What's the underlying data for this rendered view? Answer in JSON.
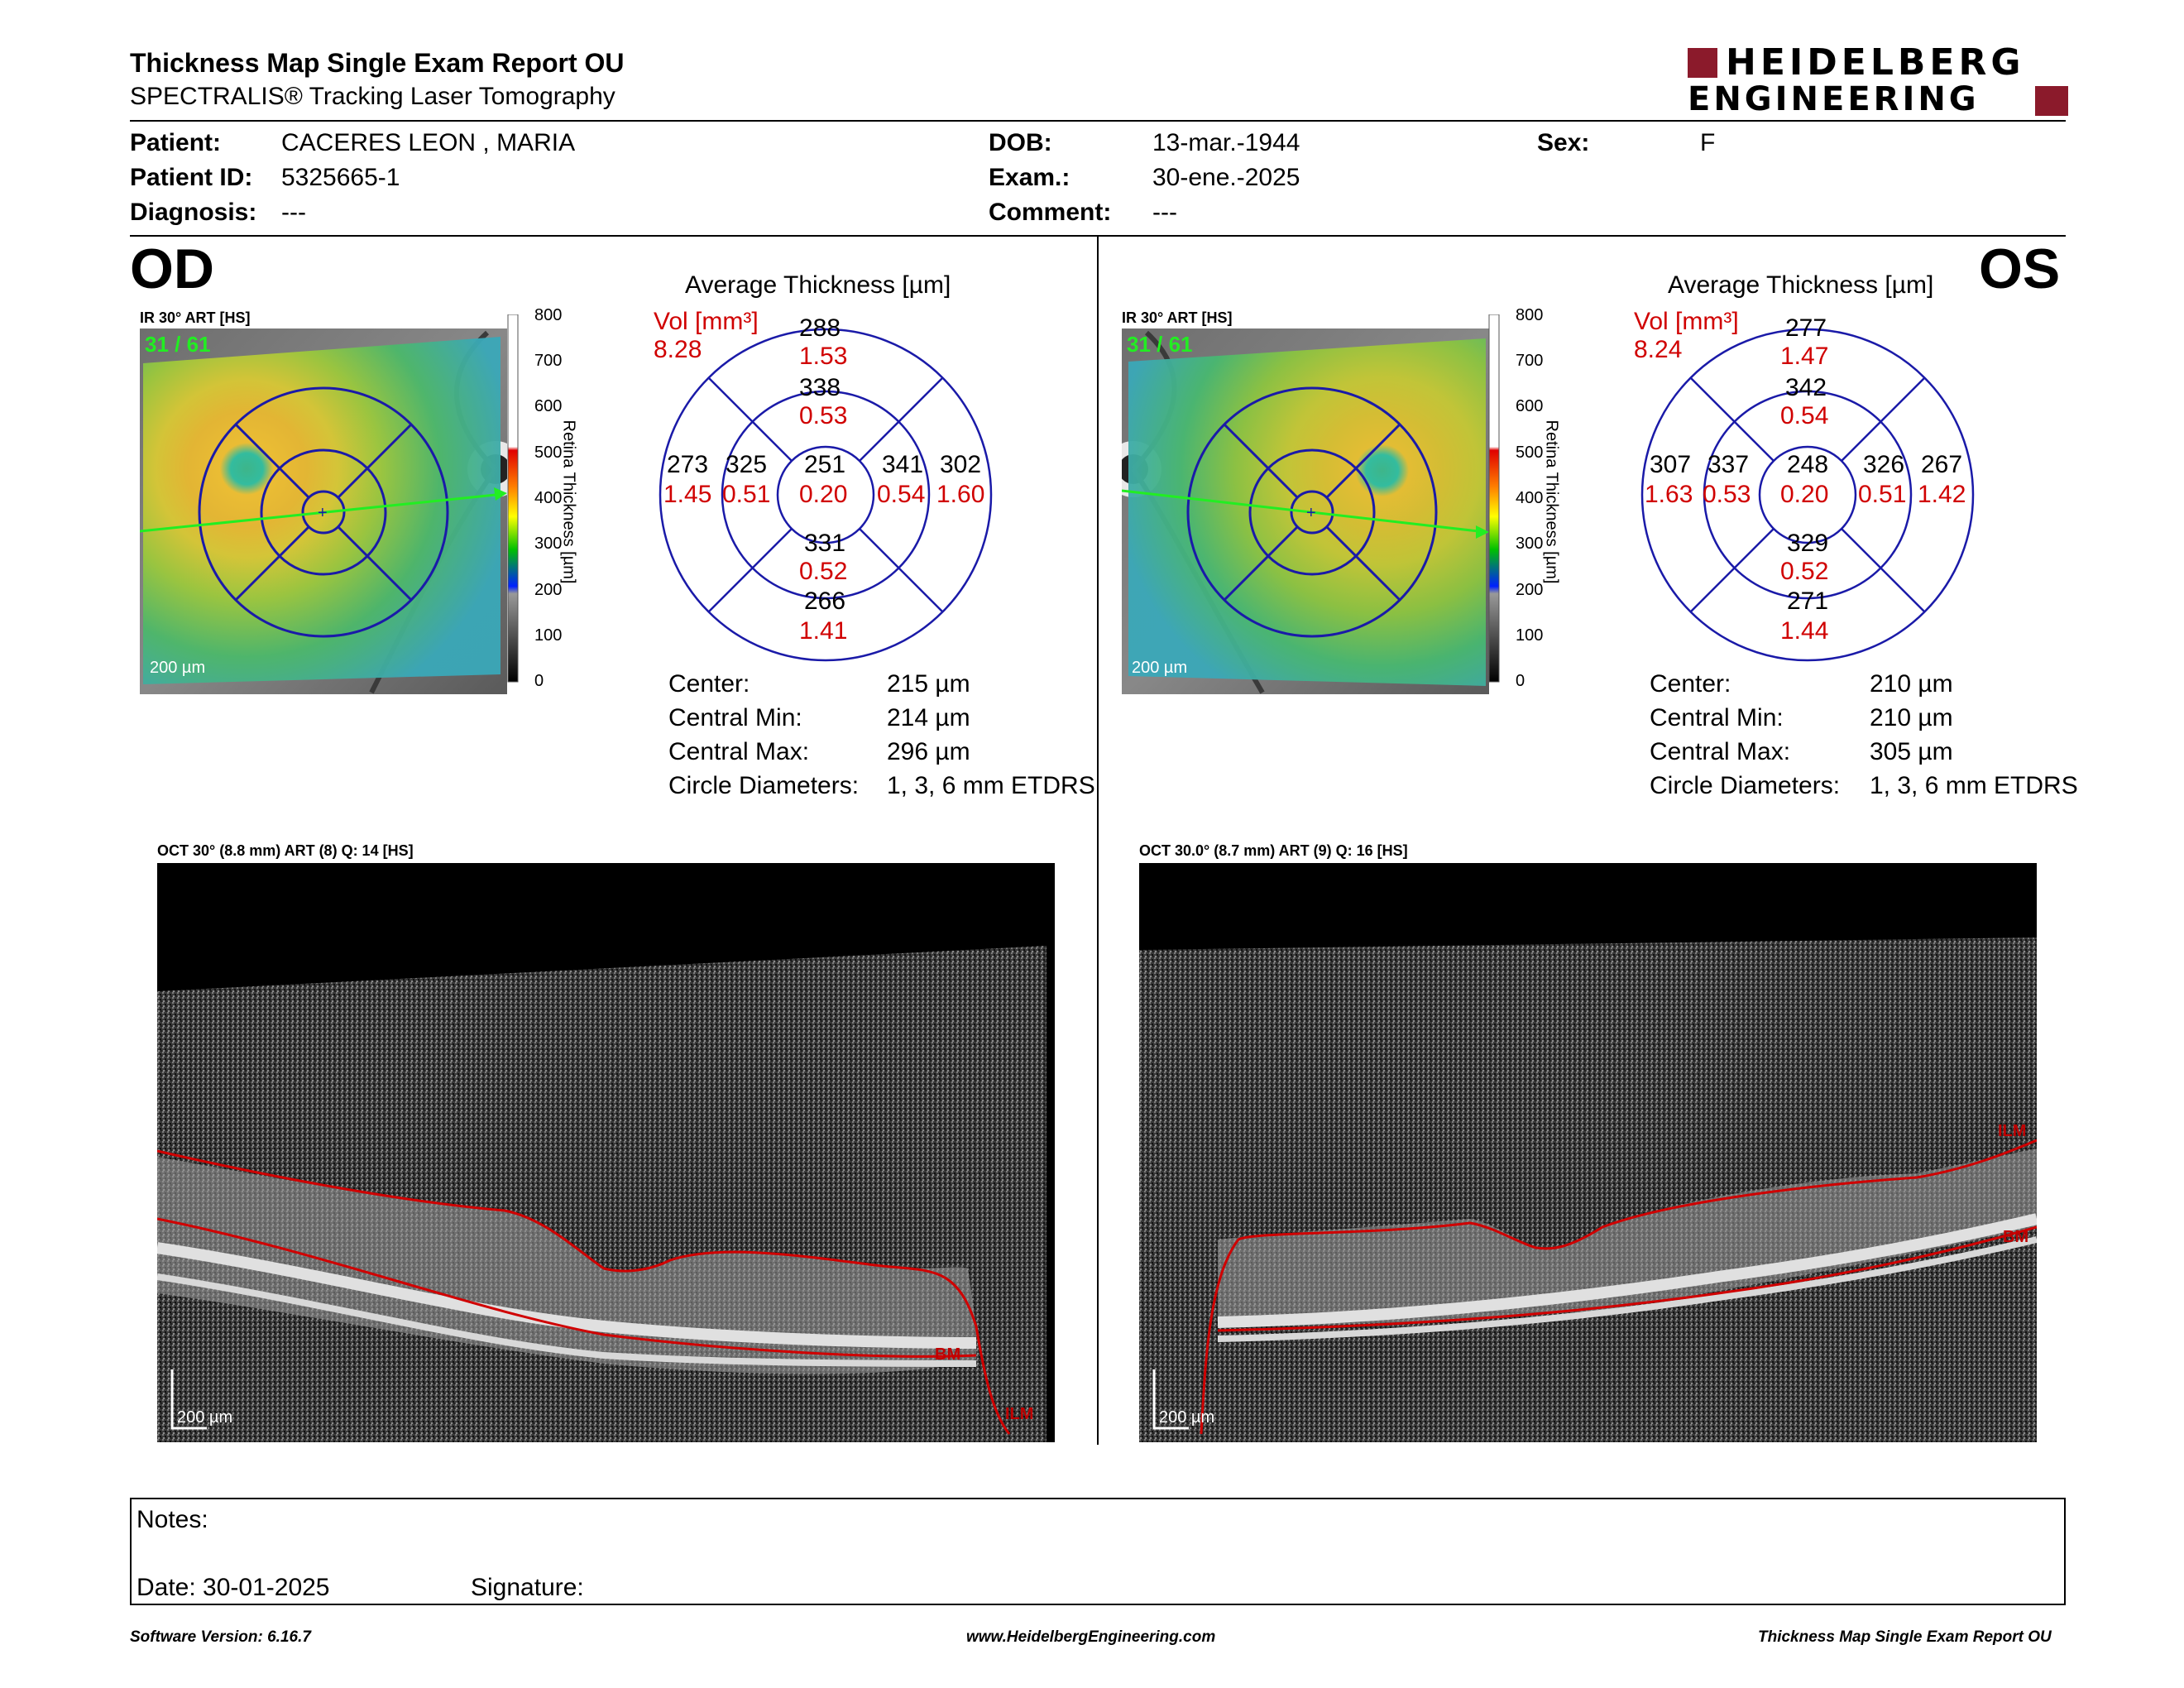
{
  "header": {
    "title": "Thickness Map Single Exam Report OU",
    "subtitle": "SPECTRALIS® Tracking Laser Tomography",
    "logo_line1": "HEIDELBERG",
    "logo_line2": "ENGINEERING",
    "brand_color": "#8b1a2b"
  },
  "patient": {
    "patient_label": "Patient:",
    "patient_value": "CACERES LEON , MARIA",
    "id_label": "Patient ID:",
    "id_value": "5325665-1",
    "diagnosis_label": "Diagnosis:",
    "diagnosis_value": "---",
    "dob_label": "DOB:",
    "dob_value": "13-mar.-1944",
    "exam_label": "Exam.:",
    "exam_value": "30-ene.-2025",
    "comment_label": "Comment:",
    "comment_value": "---",
    "sex_label": "Sex:",
    "sex_value": "F"
  },
  "od": {
    "eye": "OD",
    "ir_label": "IR 30° ART [HS]",
    "frames": "31 / 61",
    "scale": "200 µm",
    "colorbar_ticks": [
      "800",
      "700",
      "600",
      "500",
      "400",
      "300",
      "200",
      "100",
      "0"
    ],
    "colorbar_title": "Retina Thickness [µm]",
    "avg_title": "Average Thickness [µm]",
    "vol_label": "Vol [mm³]",
    "vol_total": "8.28",
    "sectors": {
      "outer_sup": {
        "t": "288",
        "v": "1.53"
      },
      "inner_sup": {
        "t": "338",
        "v": "0.53"
      },
      "outer_nas_left": {
        "t": "273",
        "v": "1.45"
      },
      "inner_left": {
        "t": "325",
        "v": "0.51"
      },
      "center": {
        "t": "251",
        "v": "0.20"
      },
      "inner_right": {
        "t": "341",
        "v": "0.54"
      },
      "outer_right": {
        "t": "302",
        "v": "1.60"
      },
      "inner_inf": {
        "t": "331",
        "v": "0.52"
      },
      "outer_inf": {
        "t": "266",
        "v": "1.41"
      }
    },
    "stats": [
      {
        "label": "Center:",
        "value": "215 µm"
      },
      {
        "label": "Central Min:",
        "value": "214 µm"
      },
      {
        "label": "Central Max:",
        "value": "296 µm"
      },
      {
        "label": "Circle Diameters:",
        "value": "1, 3, 6 mm ETDRS"
      }
    ],
    "oct_label": "OCT 30° (8.8 mm) ART (8) Q: 14 [HS]",
    "oct_scale": "200 µm",
    "bm": "BM",
    "ilm": "ILM"
  },
  "os": {
    "eye": "OS",
    "ir_label": "IR 30° ART [HS]",
    "frames": "31 / 61",
    "scale": "200 µm",
    "colorbar_ticks": [
      "800",
      "700",
      "600",
      "500",
      "400",
      "300",
      "200",
      "100",
      "0"
    ],
    "colorbar_title": "Retina Thickness [µm]",
    "avg_title": "Average Thickness [µm]",
    "vol_label": "Vol [mm³]",
    "vol_total": "8.24",
    "sectors": {
      "outer_sup": {
        "t": "277",
        "v": "1.47"
      },
      "inner_sup": {
        "t": "342",
        "v": "0.54"
      },
      "outer_nas_left": {
        "t": "307",
        "v": "1.63"
      },
      "inner_left": {
        "t": "337",
        "v": "0.53"
      },
      "center": {
        "t": "248",
        "v": "0.20"
      },
      "inner_right": {
        "t": "326",
        "v": "0.51"
      },
      "outer_right": {
        "t": "267",
        "v": "1.42"
      },
      "inner_inf": {
        "t": "329",
        "v": "0.52"
      },
      "outer_inf": {
        "t": "271",
        "v": "1.44"
      }
    },
    "stats": [
      {
        "label": "Center:",
        "value": "210 µm"
      },
      {
        "label": "Central Min:",
        "value": "210 µm"
      },
      {
        "label": "Central Max:",
        "value": "305 µm"
      },
      {
        "label": "Circle Diameters:",
        "value": "1, 3, 6 mm ETDRS"
      }
    ],
    "oct_label": "OCT 30.0° (8.7 mm) ART (9) Q: 16 [HS]",
    "oct_scale": "200 µm",
    "bm": "BM",
    "ilm": "ILM"
  },
  "notes": {
    "notes_label": "Notes:",
    "date_label": "Date: 30-01-2025",
    "signature_label": "Signature:"
  },
  "footer": {
    "software": "Software Version: 6.16.7",
    "website": "www.HeidelbergEngineering.com",
    "report": "Thickness Map Single Exam Report OU"
  },
  "colors": {
    "red": "#d00000",
    "blue": "#1a1aa8",
    "green": "#22ee22"
  }
}
